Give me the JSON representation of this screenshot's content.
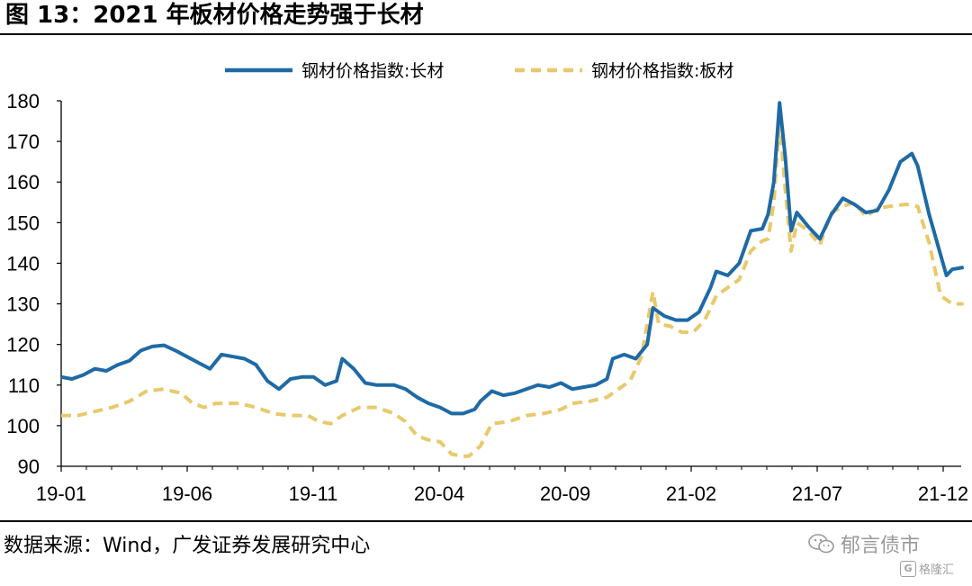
{
  "figure": {
    "title": "图 13：2021 年板材价格走势强于长材",
    "source": "数据来源：Wind，广发证券发展研究中心",
    "watermark": "郁言债市",
    "watermark_sub": "格隆汇"
  },
  "chart_data": {
    "type": "line",
    "title": "",
    "xlabel": "",
    "ylabel": "",
    "ylim": [
      90,
      180
    ],
    "y_ticks": [
      90,
      100,
      110,
      120,
      130,
      140,
      150,
      160,
      170,
      180
    ],
    "x_tick_labels": [
      "19-01",
      "19-06",
      "19-11",
      "20-04",
      "20-09",
      "21-02",
      "21-07",
      "21-12"
    ],
    "x_range": [
      "2019-01-01",
      "2021-12-31"
    ],
    "grid": false,
    "legend_position": "top-center",
    "series": [
      {
        "name": "钢材价格指数:长材",
        "color": "#1f6aa5",
        "style": "solid",
        "points": [
          [
            "2019-01-01",
            112
          ],
          [
            "2019-01-14",
            111.5
          ],
          [
            "2019-01-28",
            112.5
          ],
          [
            "2019-02-11",
            114
          ],
          [
            "2019-02-25",
            113.5
          ],
          [
            "2019-03-11",
            115
          ],
          [
            "2019-03-25",
            116
          ],
          [
            "2019-04-08",
            118.5
          ],
          [
            "2019-04-22",
            119.5
          ],
          [
            "2019-05-06",
            119.8
          ],
          [
            "2019-05-20",
            118.5
          ],
          [
            "2019-06-03",
            117
          ],
          [
            "2019-06-17",
            115.5
          ],
          [
            "2019-07-01",
            114
          ],
          [
            "2019-07-15",
            117.5
          ],
          [
            "2019-07-29",
            117
          ],
          [
            "2019-08-12",
            116.5
          ],
          [
            "2019-08-26",
            115
          ],
          [
            "2019-09-09",
            111
          ],
          [
            "2019-09-23",
            109
          ],
          [
            "2019-10-07",
            111.5
          ],
          [
            "2019-10-21",
            112
          ],
          [
            "2019-11-04",
            112
          ],
          [
            "2019-11-18",
            110
          ],
          [
            "2019-12-02",
            111
          ],
          [
            "2019-12-09",
            116.5
          ],
          [
            "2019-12-23",
            114
          ],
          [
            "2020-01-06",
            110.5
          ],
          [
            "2020-01-20",
            110
          ],
          [
            "2020-02-10",
            110
          ],
          [
            "2020-02-24",
            109
          ],
          [
            "2020-03-09",
            107
          ],
          [
            "2020-03-23",
            105.5
          ],
          [
            "2020-04-06",
            104.5
          ],
          [
            "2020-04-20",
            103
          ],
          [
            "2020-05-04",
            103
          ],
          [
            "2020-05-18",
            104
          ],
          [
            "2020-05-25",
            106
          ],
          [
            "2020-06-08",
            108.5
          ],
          [
            "2020-06-22",
            107.5
          ],
          [
            "2020-07-06",
            108
          ],
          [
            "2020-07-20",
            109
          ],
          [
            "2020-08-03",
            110
          ],
          [
            "2020-08-17",
            109.5
          ],
          [
            "2020-08-31",
            110.5
          ],
          [
            "2020-09-14",
            109
          ],
          [
            "2020-09-28",
            109.5
          ],
          [
            "2020-10-12",
            110
          ],
          [
            "2020-10-26",
            111.5
          ],
          [
            "2020-11-02",
            116.5
          ],
          [
            "2020-11-16",
            117.5
          ],
          [
            "2020-11-30",
            116.5
          ],
          [
            "2020-12-14",
            120
          ],
          [
            "2020-12-21",
            129
          ],
          [
            "2021-01-04",
            127
          ],
          [
            "2021-01-18",
            126
          ],
          [
            "2021-02-01",
            126
          ],
          [
            "2021-02-15",
            128
          ],
          [
            "2021-03-01",
            134
          ],
          [
            "2021-03-08",
            138
          ],
          [
            "2021-03-22",
            137
          ],
          [
            "2021-04-05",
            140
          ],
          [
            "2021-04-19",
            148
          ],
          [
            "2021-05-03",
            148.5
          ],
          [
            "2021-05-10",
            152
          ],
          [
            "2021-05-17",
            160
          ],
          [
            "2021-05-24",
            179.5
          ],
          [
            "2021-05-31",
            166
          ],
          [
            "2021-06-07",
            148
          ],
          [
            "2021-06-14",
            152.5
          ],
          [
            "2021-06-28",
            149
          ],
          [
            "2021-07-12",
            146
          ],
          [
            "2021-07-26",
            152
          ],
          [
            "2021-08-09",
            156
          ],
          [
            "2021-08-23",
            154.5
          ],
          [
            "2021-09-06",
            152.5
          ],
          [
            "2021-09-20",
            153
          ],
          [
            "2021-10-04",
            158
          ],
          [
            "2021-10-18",
            165
          ],
          [
            "2021-11-01",
            167
          ],
          [
            "2021-11-08",
            164
          ],
          [
            "2021-11-22",
            152
          ],
          [
            "2021-12-06",
            142
          ],
          [
            "2021-12-13",
            137
          ],
          [
            "2021-12-20",
            138.5
          ],
          [
            "2022-01-03",
            139
          ]
        ]
      },
      {
        "name": "钢材价格指数:板材",
        "color": "#e8c96c",
        "style": "dashed",
        "points": [
          [
            "2019-01-01",
            102.5
          ],
          [
            "2019-01-21",
            102.5
          ],
          [
            "2019-02-11",
            103.5
          ],
          [
            "2019-03-04",
            104.5
          ],
          [
            "2019-03-25",
            106
          ],
          [
            "2019-04-15",
            108.5
          ],
          [
            "2019-05-06",
            109
          ],
          [
            "2019-05-27",
            108
          ],
          [
            "2019-06-10",
            105.5
          ],
          [
            "2019-06-24",
            104.5
          ],
          [
            "2019-07-08",
            105.5
          ],
          [
            "2019-08-05",
            105.5
          ],
          [
            "2019-08-26",
            104.5
          ],
          [
            "2019-09-16",
            103
          ],
          [
            "2019-10-07",
            102.5
          ],
          [
            "2019-10-28",
            102.5
          ],
          [
            "2019-11-11",
            101
          ],
          [
            "2019-11-25",
            100.5
          ],
          [
            "2019-12-09",
            102.5
          ],
          [
            "2019-12-30",
            104.5
          ],
          [
            "2020-01-20",
            104.5
          ],
          [
            "2020-02-10",
            103
          ],
          [
            "2020-02-24",
            101
          ],
          [
            "2020-03-09",
            97.5
          ],
          [
            "2020-03-23",
            96.5
          ],
          [
            "2020-04-06",
            96
          ],
          [
            "2020-04-20",
            93
          ],
          [
            "2020-05-04",
            92.5
          ],
          [
            "2020-05-11",
            92.5
          ],
          [
            "2020-05-25",
            95
          ],
          [
            "2020-06-08",
            100.5
          ],
          [
            "2020-06-29",
            101
          ],
          [
            "2020-07-20",
            102.5
          ],
          [
            "2020-08-10",
            103
          ],
          [
            "2020-08-31",
            104
          ],
          [
            "2020-09-14",
            105.5
          ],
          [
            "2020-10-05",
            106
          ],
          [
            "2020-10-26",
            107
          ],
          [
            "2020-11-09",
            109
          ],
          [
            "2020-11-23",
            111
          ],
          [
            "2020-12-07",
            117
          ],
          [
            "2020-12-21",
            133
          ],
          [
            "2020-12-28",
            125
          ],
          [
            "2021-01-11",
            124.5
          ],
          [
            "2021-01-25",
            123
          ],
          [
            "2021-02-08",
            123
          ],
          [
            "2021-02-22",
            126
          ],
          [
            "2021-03-08",
            132
          ],
          [
            "2021-03-22",
            134
          ],
          [
            "2021-04-05",
            136
          ],
          [
            "2021-04-19",
            143
          ],
          [
            "2021-05-03",
            145.5
          ],
          [
            "2021-05-10",
            146
          ],
          [
            "2021-05-17",
            155
          ],
          [
            "2021-05-24",
            175.5
          ],
          [
            "2021-05-31",
            158
          ],
          [
            "2021-06-07",
            143
          ],
          [
            "2021-06-14",
            150
          ],
          [
            "2021-06-28",
            148
          ],
          [
            "2021-07-12",
            144.5
          ],
          [
            "2021-07-26",
            152.5
          ],
          [
            "2021-08-09",
            154
          ],
          [
            "2021-08-23",
            155
          ],
          [
            "2021-09-06",
            151.5
          ],
          [
            "2021-09-20",
            153.5
          ],
          [
            "2021-10-04",
            154
          ],
          [
            "2021-10-25",
            154.5
          ],
          [
            "2021-11-08",
            154
          ],
          [
            "2021-11-22",
            145
          ],
          [
            "2021-12-06",
            132
          ],
          [
            "2021-12-20",
            130
          ],
          [
            "2022-01-03",
            130
          ]
        ]
      }
    ]
  }
}
